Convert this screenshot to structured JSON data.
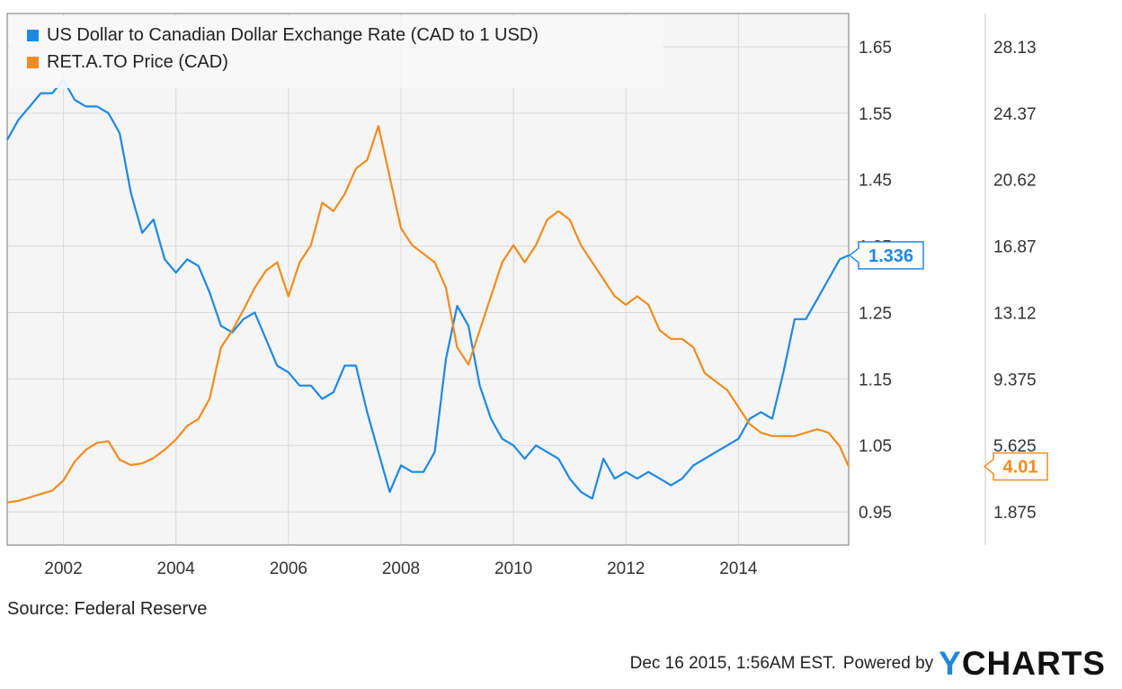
{
  "chart_data": {
    "type": "line",
    "title": "",
    "x_ticks": [
      "2002",
      "2004",
      "2006",
      "2008",
      "2010",
      "2012",
      "2014"
    ],
    "xlim": [
      2001.0,
      2015.96
    ],
    "series": [
      {
        "name": "US Dollar to Canadian Dollar Exchange Rate (CAD to 1 USD)",
        "color": "#1e88e5",
        "axis": "left",
        "last_value_label": "1.336",
        "x": [
          2001.0,
          2001.2,
          2001.4,
          2001.6,
          2001.8,
          2002.0,
          2002.2,
          2002.4,
          2002.6,
          2002.8,
          2003.0,
          2003.2,
          2003.4,
          2003.6,
          2003.8,
          2004.0,
          2004.2,
          2004.4,
          2004.6,
          2004.8,
          2005.0,
          2005.2,
          2005.4,
          2005.6,
          2005.8,
          2006.0,
          2006.2,
          2006.4,
          2006.6,
          2006.8,
          2007.0,
          2007.2,
          2007.4,
          2007.6,
          2007.8,
          2008.0,
          2008.2,
          2008.4,
          2008.6,
          2008.8,
          2009.0,
          2009.2,
          2009.4,
          2009.6,
          2009.8,
          2010.0,
          2010.2,
          2010.4,
          2010.6,
          2010.8,
          2011.0,
          2011.2,
          2011.4,
          2011.6,
          2011.8,
          2012.0,
          2012.2,
          2012.4,
          2012.6,
          2012.8,
          2013.0,
          2013.2,
          2013.4,
          2013.6,
          2013.8,
          2014.0,
          2014.2,
          2014.4,
          2014.6,
          2014.8,
          2015.0,
          2015.2,
          2015.4,
          2015.6,
          2015.8,
          2015.96
        ],
        "values": [
          1.51,
          1.54,
          1.56,
          1.58,
          1.58,
          1.6,
          1.57,
          1.56,
          1.56,
          1.55,
          1.52,
          1.43,
          1.37,
          1.39,
          1.33,
          1.31,
          1.33,
          1.32,
          1.28,
          1.23,
          1.22,
          1.24,
          1.25,
          1.21,
          1.17,
          1.16,
          1.14,
          1.14,
          1.12,
          1.13,
          1.17,
          1.17,
          1.1,
          1.04,
          0.98,
          1.02,
          1.01,
          1.01,
          1.04,
          1.18,
          1.26,
          1.23,
          1.14,
          1.09,
          1.06,
          1.05,
          1.03,
          1.05,
          1.04,
          1.03,
          1.0,
          0.98,
          0.97,
          1.03,
          1.0,
          1.01,
          1.0,
          1.01,
          1.0,
          0.99,
          1.0,
          1.02,
          1.03,
          1.04,
          1.05,
          1.06,
          1.09,
          1.1,
          1.09,
          1.16,
          1.24,
          1.24,
          1.27,
          1.3,
          1.33,
          1.336
        ]
      },
      {
        "name": "RET.A.TO Price (CAD)",
        "color": "#f28c1e",
        "axis": "right",
        "last_value_label": "4.01",
        "x": [
          2001.0,
          2001.2,
          2001.4,
          2001.6,
          2001.8,
          2002.0,
          2002.2,
          2002.4,
          2002.6,
          2002.8,
          2003.0,
          2003.2,
          2003.4,
          2003.6,
          2003.8,
          2004.0,
          2004.2,
          2004.4,
          2004.6,
          2004.8,
          2005.0,
          2005.2,
          2005.4,
          2005.6,
          2005.8,
          2006.0,
          2006.2,
          2006.4,
          2006.6,
          2006.8,
          2007.0,
          2007.2,
          2007.4,
          2007.6,
          2007.8,
          2008.0,
          2008.2,
          2008.4,
          2008.6,
          2008.8,
          2009.0,
          2009.2,
          2009.4,
          2009.6,
          2009.8,
          2010.0,
          2010.2,
          2010.4,
          2010.6,
          2010.8,
          2011.0,
          2011.2,
          2011.4,
          2011.6,
          2011.8,
          2012.0,
          2012.2,
          2012.4,
          2012.6,
          2012.8,
          2013.0,
          2013.2,
          2013.4,
          2013.6,
          2013.8,
          2014.0,
          2014.2,
          2014.4,
          2014.6,
          2014.8,
          2015.0,
          2015.2,
          2015.4,
          2015.6,
          2015.8,
          2015.96
        ],
        "values": [
          1.9,
          2.0,
          2.2,
          2.4,
          2.6,
          3.2,
          4.3,
          5.0,
          5.4,
          5.5,
          4.4,
          4.1,
          4.2,
          4.5,
          5.0,
          5.6,
          6.4,
          6.8,
          8.0,
          11.0,
          12.0,
          13.2,
          14.5,
          15.5,
          16.0,
          14.0,
          16.0,
          17.0,
          19.5,
          19.0,
          20.0,
          21.5,
          22.0,
          24.0,
          21.0,
          18.0,
          17.0,
          16.5,
          16.0,
          14.5,
          11.0,
          10.0,
          12.0,
          14.0,
          16.0,
          17.0,
          16.0,
          17.0,
          18.5,
          19.0,
          18.5,
          17.0,
          16.0,
          15.0,
          14.0,
          13.5,
          14.0,
          13.5,
          12.0,
          11.5,
          11.5,
          11.0,
          9.5,
          9.0,
          8.5,
          7.5,
          6.5,
          6.0,
          5.8,
          5.8,
          5.8,
          6.0,
          6.2,
          6.0,
          5.2,
          4.01
        ]
      }
    ],
    "y_left": {
      "ticks": [
        "0.95",
        "1.05",
        "1.15",
        "1.25",
        "1.35",
        "1.45",
        "1.55",
        "1.65"
      ],
      "ylim": [
        0.9,
        1.7
      ]
    },
    "y_right": {
      "ticks": [
        "1.875",
        "5.625",
        "9.375",
        "13.12",
        "16.87",
        "20.62",
        "24.37",
        "28.13"
      ],
      "ylim": [
        -0.6,
        30.6
      ]
    },
    "grid": true,
    "legend_placement": "top-left"
  },
  "source": "Source: Federal Reserve",
  "footer": {
    "timestamp": "Dec 16 2015, 1:56AM EST.",
    "powered_by": "Powered by",
    "brand_y": "Y",
    "brand_rest": "CHARTS"
  },
  "colors": {
    "blue": "#1e88e5",
    "orange": "#f28c1e",
    "plot_bg": "#f5f5f5",
    "grid": "#d9d9d9"
  }
}
